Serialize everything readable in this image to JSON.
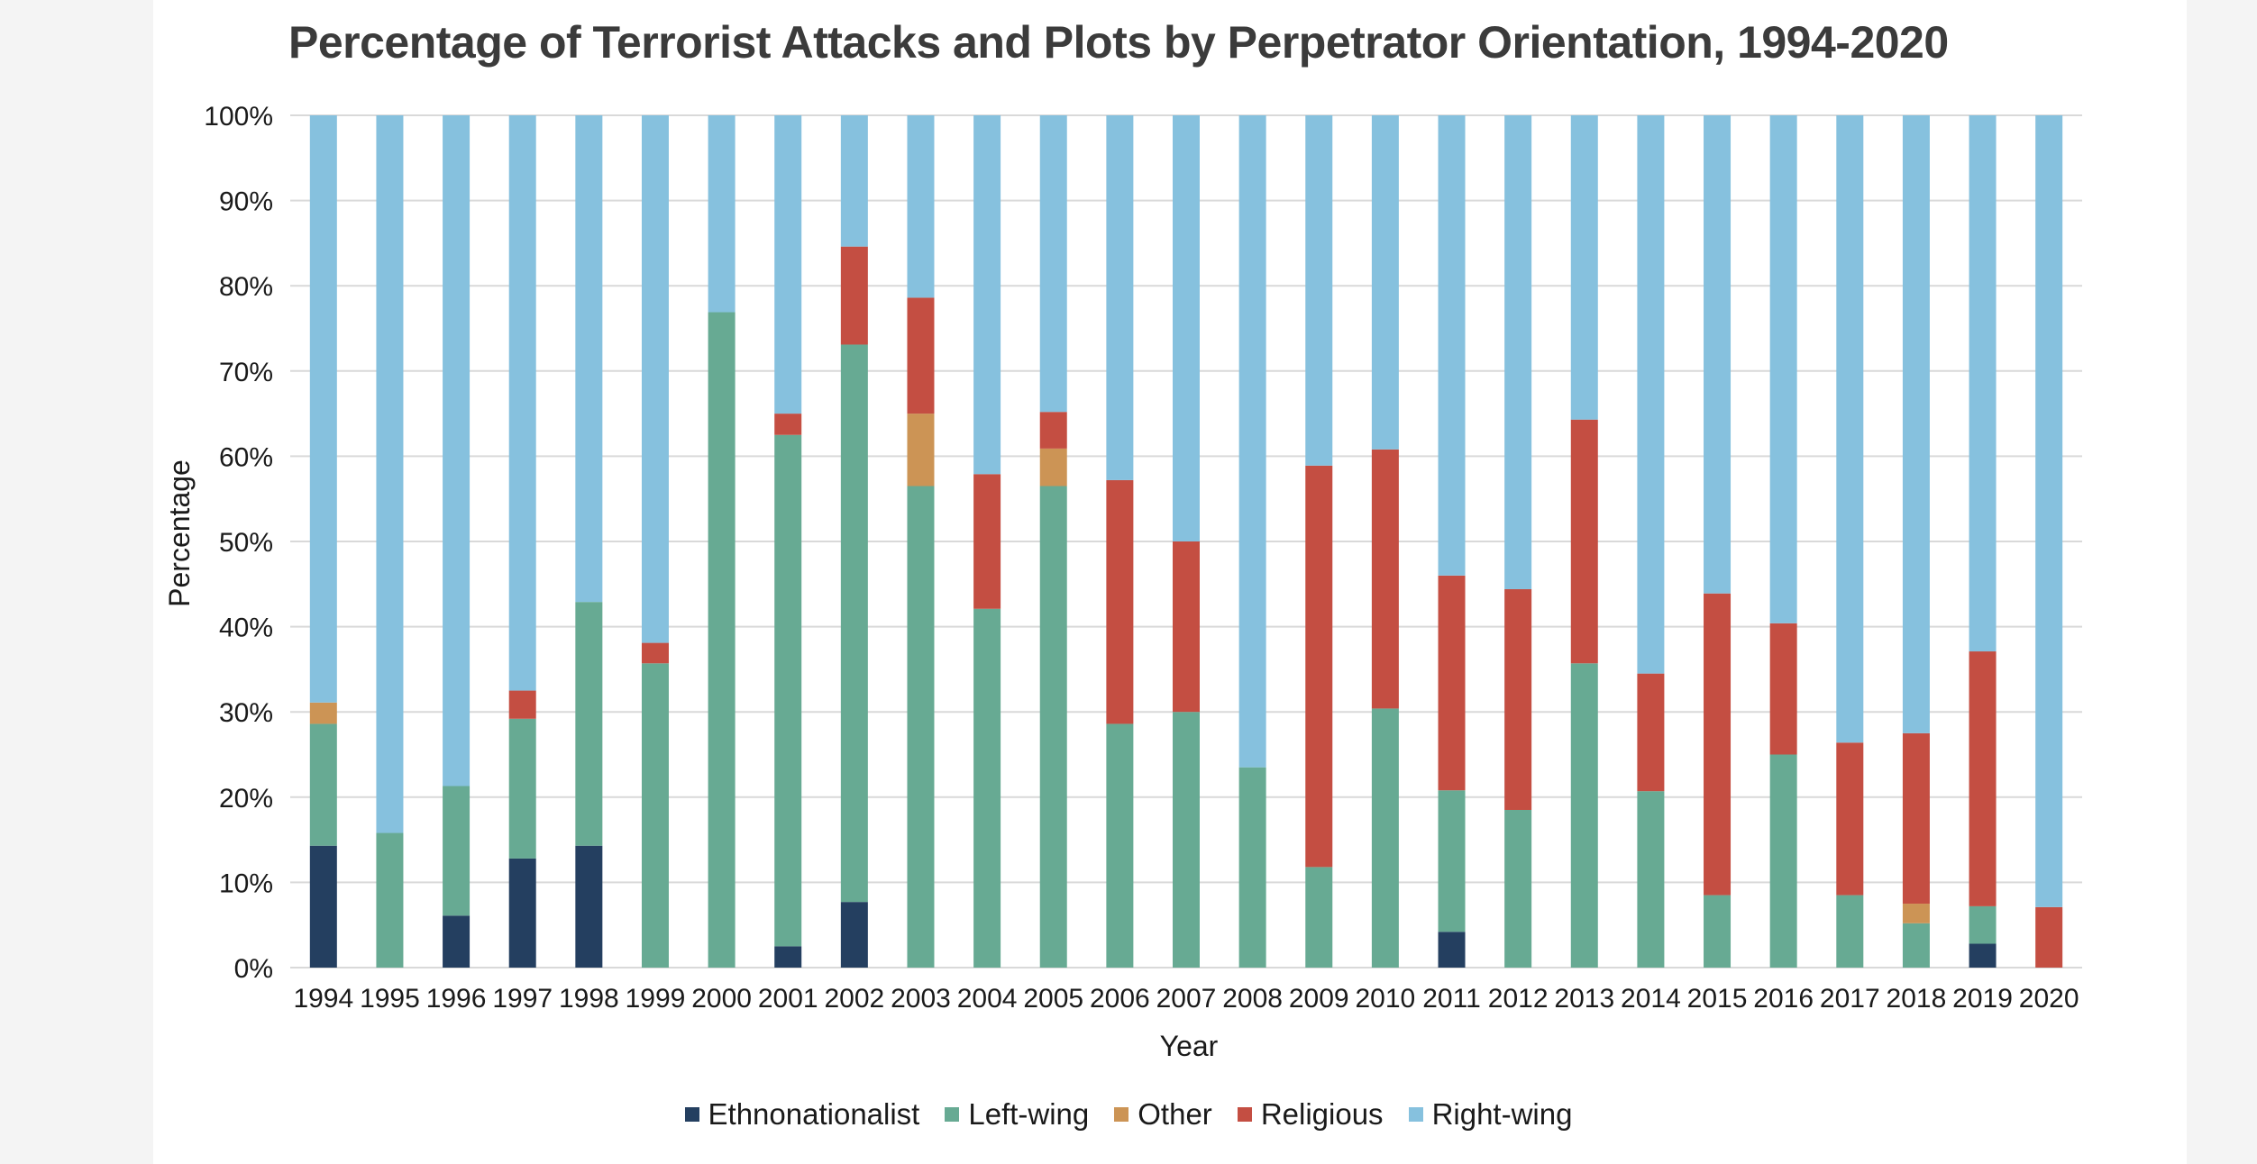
{
  "colors": {
    "Ethnonationalist": "#243f60",
    "Left-wing": "#67aa93",
    "Other": "#cc9455",
    "Religious": "#c44e42",
    "Right-wing": "#86c1de",
    "grid": "#d9d9d9"
  },
  "chart_data": {
    "type": "bar",
    "stacked": true,
    "title": "Percentage of Terrorist Attacks and Plots by Perpetrator Orientation, 1994-2020",
    "xlabel": "Year",
    "ylabel": "Percentage",
    "ylim": [
      0,
      100
    ],
    "yticks": [
      "0%",
      "10%",
      "20%",
      "30%",
      "40%",
      "50%",
      "60%",
      "70%",
      "80%",
      "90%",
      "100%"
    ],
    "legend_position": "bottom",
    "categories": [
      "1994",
      "1995",
      "1996",
      "1997",
      "1998",
      "1999",
      "2000",
      "2001",
      "2002",
      "2003",
      "2004",
      "2005",
      "2006",
      "2007",
      "2008",
      "2009",
      "2010",
      "2011",
      "2012",
      "2013",
      "2014",
      "2015",
      "2016",
      "2017",
      "2018",
      "2019",
      "2020"
    ],
    "series": [
      {
        "name": "Ethnonationalist",
        "values": [
          14.3,
          0,
          6.1,
          12.8,
          14.3,
          0,
          0,
          2.5,
          7.7,
          0,
          0,
          0,
          0,
          0,
          0,
          0,
          0,
          4.2,
          0,
          0,
          0,
          0,
          0,
          0,
          0,
          2.8,
          0
        ]
      },
      {
        "name": "Left-wing",
        "values": [
          14.3,
          15.8,
          15.2,
          16.4,
          28.6,
          35.7,
          76.9,
          60.0,
          65.4,
          56.5,
          42.1,
          56.5,
          28.6,
          30.0,
          23.5,
          11.8,
          30.4,
          16.6,
          18.5,
          35.7,
          20.7,
          8.5,
          25.0,
          8.5,
          5.2,
          4.4,
          0
        ]
      },
      {
        "name": "Other",
        "values": [
          2.5,
          0,
          0,
          0,
          0,
          0,
          0,
          0,
          0,
          8.5,
          0,
          4.4,
          0,
          0,
          0,
          0,
          0,
          0,
          0,
          0,
          0,
          0,
          0,
          0,
          2.3,
          0,
          0
        ]
      },
      {
        "name": "Religious",
        "values": [
          0,
          0,
          0,
          3.3,
          0,
          2.4,
          0,
          2.5,
          11.5,
          13.6,
          15.8,
          4.3,
          28.6,
          20.0,
          0,
          47.1,
          30.4,
          25.2,
          25.9,
          28.6,
          13.8,
          35.4,
          15.4,
          17.9,
          20.0,
          29.9,
          7.1
        ]
      },
      {
        "name": "Right-wing",
        "values": [
          68.9,
          84.2,
          78.7,
          67.5,
          57.1,
          61.9,
          23.1,
          35.0,
          15.4,
          21.4,
          42.1,
          34.8,
          42.8,
          50.0,
          76.5,
          41.1,
          39.2,
          54.0,
          55.6,
          35.7,
          65.5,
          56.1,
          59.6,
          73.6,
          72.5,
          62.9,
          92.9
        ]
      }
    ]
  }
}
